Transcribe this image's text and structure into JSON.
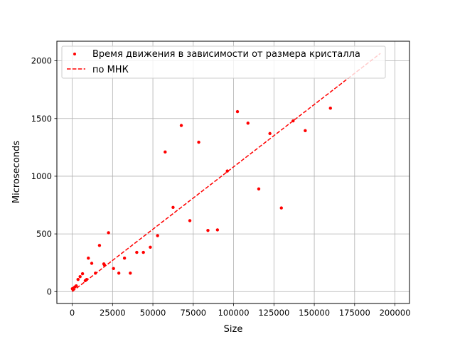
{
  "chart_data": {
    "type": "scatter",
    "xlabel": "Size",
    "ylabel": "Microseconds",
    "xlim": [
      -9500,
      209000
    ],
    "ylim": [
      -103,
      2170
    ],
    "xticks": [
      0,
      25000,
      50000,
      75000,
      100000,
      125000,
      150000,
      175000,
      200000
    ],
    "xtick_labels": [
      "0",
      "25000",
      "50000",
      "75000",
      "100000",
      "125000",
      "150000",
      "175000",
      "200000"
    ],
    "yticks": [
      0,
      500,
      1000,
      1500,
      2000
    ],
    "ytick_labels": [
      "0",
      "500",
      "1000",
      "1500",
      "2000"
    ],
    "grid": true,
    "legend_position": "top-left",
    "series": [
      {
        "name": "Время движения в зависимости от размера кристалла",
        "kind": "scatter",
        "color": "#ff0000",
        "x": [
          100,
          400,
          900,
          1600,
          2500,
          3600,
          4900,
          6400,
          8100,
          9000,
          10000,
          12100,
          14400,
          16900,
          19600,
          20000,
          22500,
          25600,
          28900,
          32400,
          36000,
          40000,
          44100,
          48400,
          52900,
          57600,
          62500,
          67600,
          72900,
          78400,
          84100,
          90000,
          96100,
          102400,
          108900,
          115600,
          122500,
          129600,
          136900,
          144400,
          160000
        ],
        "y": [
          25,
          20,
          30,
          40,
          50,
          105,
          130,
          155,
          95,
          105,
          290,
          245,
          160,
          400,
          240,
          230,
          510,
          200,
          160,
          290,
          160,
          340,
          340,
          385,
          485,
          1210,
          730,
          1440,
          615,
          1295,
          530,
          535,
          1045,
          1560,
          1460,
          890,
          1370,
          725,
          1480,
          1395,
          1590
        ]
      },
      {
        "name": "по МНК",
        "kind": "line",
        "color": "#ff0000",
        "dash": "dashed",
        "x": [
          0,
          191000
        ],
        "y": [
          0,
          2065
        ]
      }
    ]
  }
}
